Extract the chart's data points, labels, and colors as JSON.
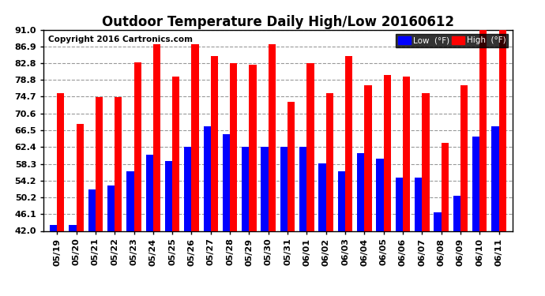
{
  "title": "Outdoor Temperature Daily High/Low 20160612",
  "copyright": "Copyright 2016 Cartronics.com",
  "legend_low": "Low  (°F)",
  "legend_high": "High  (°F)",
  "dates": [
    "05/19",
    "05/20",
    "05/21",
    "05/22",
    "05/23",
    "05/24",
    "05/25",
    "05/26",
    "05/27",
    "05/28",
    "05/29",
    "05/30",
    "05/31",
    "06/01",
    "06/02",
    "06/03",
    "06/04",
    "06/05",
    "06/06",
    "06/07",
    "06/08",
    "06/09",
    "06/10",
    "06/11"
  ],
  "highs": [
    75.5,
    68.0,
    74.5,
    74.5,
    83.0,
    87.5,
    79.5,
    87.5,
    84.5,
    82.8,
    82.5,
    87.5,
    73.5,
    82.8,
    75.5,
    84.5,
    77.5,
    80.0,
    79.5,
    75.5,
    63.5,
    77.5,
    91.0,
    91.0
  ],
  "lows": [
    43.5,
    43.5,
    52.0,
    53.0,
    56.5,
    60.5,
    59.0,
    62.5,
    67.5,
    65.5,
    62.5,
    62.5,
    62.5,
    62.5,
    58.5,
    56.5,
    61.0,
    59.5,
    55.0,
    55.0,
    46.5,
    50.5,
    65.0,
    67.5
  ],
  "ymin": 42.0,
  "ymax": 91.0,
  "yticks": [
    42.0,
    46.1,
    50.2,
    54.2,
    58.3,
    62.4,
    66.5,
    70.6,
    74.7,
    78.8,
    82.8,
    86.9,
    91.0
  ],
  "bar_width": 0.38,
  "high_color": "#ff0000",
  "low_color": "#0000ff",
  "bg_color": "#ffffff",
  "grid_color": "#999999",
  "title_fontsize": 12,
  "tick_fontsize": 8,
  "copyright_fontsize": 7.5
}
